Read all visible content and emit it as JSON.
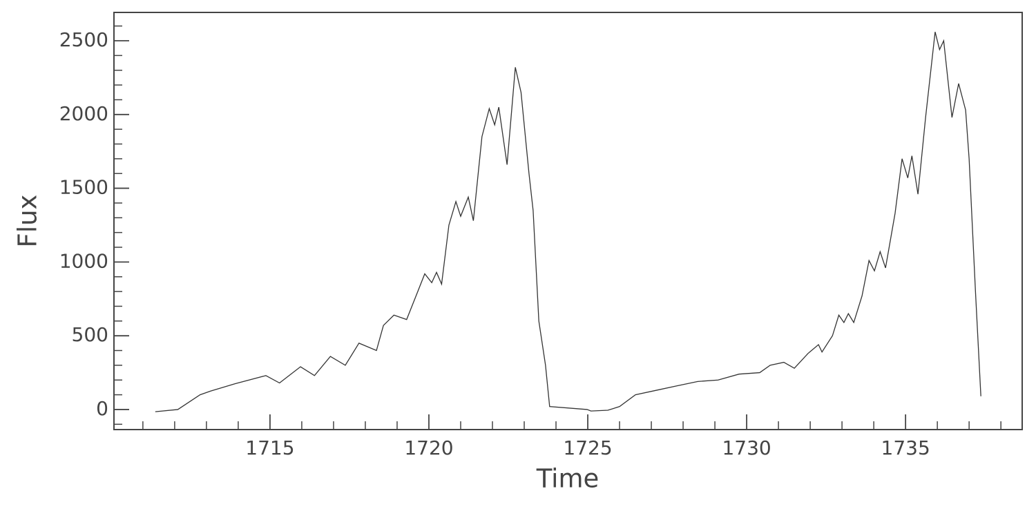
{
  "chart_data": {
    "type": "line",
    "xlabel": "Time",
    "ylabel": "Flux",
    "xlim": [
      1710.09,
      1738.67
    ],
    "ylim": [
      -136,
      2692
    ],
    "xticks": [
      1715,
      1720,
      1725,
      1730,
      1735
    ],
    "yticks": [
      0,
      500,
      1000,
      1500,
      2000,
      2500
    ],
    "series": [
      {
        "color": "#333333",
        "x": [
          1711.39,
          1712.1,
          1712.8,
          1713.13,
          1713.9,
          1714.87,
          1715.3,
          1715.96,
          1716.4,
          1716.9,
          1717.37,
          1717.8,
          1718.35,
          1718.57,
          1718.9,
          1719.3,
          1719.65,
          1719.87,
          1720.09,
          1720.24,
          1720.4,
          1720.63,
          1720.85,
          1721.0,
          1721.24,
          1721.4,
          1721.67,
          1721.9,
          1722.07,
          1722.2,
          1722.46,
          1722.72,
          1722.9,
          1723.15,
          1723.28,
          1723.46,
          1723.67,
          1723.8,
          1724.98,
          1725.1,
          1725.63,
          1726.0,
          1726.5,
          1727.15,
          1727.8,
          1728.46,
          1729.1,
          1729.76,
          1730.41,
          1730.74,
          1731.17,
          1731.5,
          1731.93,
          1732.26,
          1732.37,
          1732.7,
          1732.9,
          1733.06,
          1733.2,
          1733.37,
          1733.63,
          1733.85,
          1734.02,
          1734.2,
          1734.37,
          1734.67,
          1734.89,
          1735.07,
          1735.2,
          1735.39,
          1735.63,
          1735.93,
          1736.07,
          1736.2,
          1736.46,
          1736.67,
          1736.89,
          1737.0,
          1737.2,
          1737.37
        ],
        "values": [
          -15,
          0,
          100,
          125,
          175,
          230,
          180,
          290,
          230,
          360,
          300,
          450,
          400,
          570,
          640,
          610,
          800,
          920,
          860,
          930,
          850,
          1250,
          1410,
          1310,
          1440,
          1280,
          1850,
          2040,
          1930,
          2050,
          1660,
          2320,
          2150,
          1600,
          1350,
          600,
          300,
          20,
          0,
          -10,
          -5,
          20,
          100,
          130,
          160,
          190,
          200,
          240,
          250,
          300,
          320,
          280,
          380,
          440,
          390,
          500,
          640,
          590,
          650,
          590,
          770,
          1010,
          940,
          1070,
          960,
          1330,
          1700,
          1570,
          1720,
          1460,
          1980,
          2560,
          2440,
          2500,
          1980,
          2210,
          2030,
          1700,
          800,
          90
        ]
      }
    ]
  }
}
